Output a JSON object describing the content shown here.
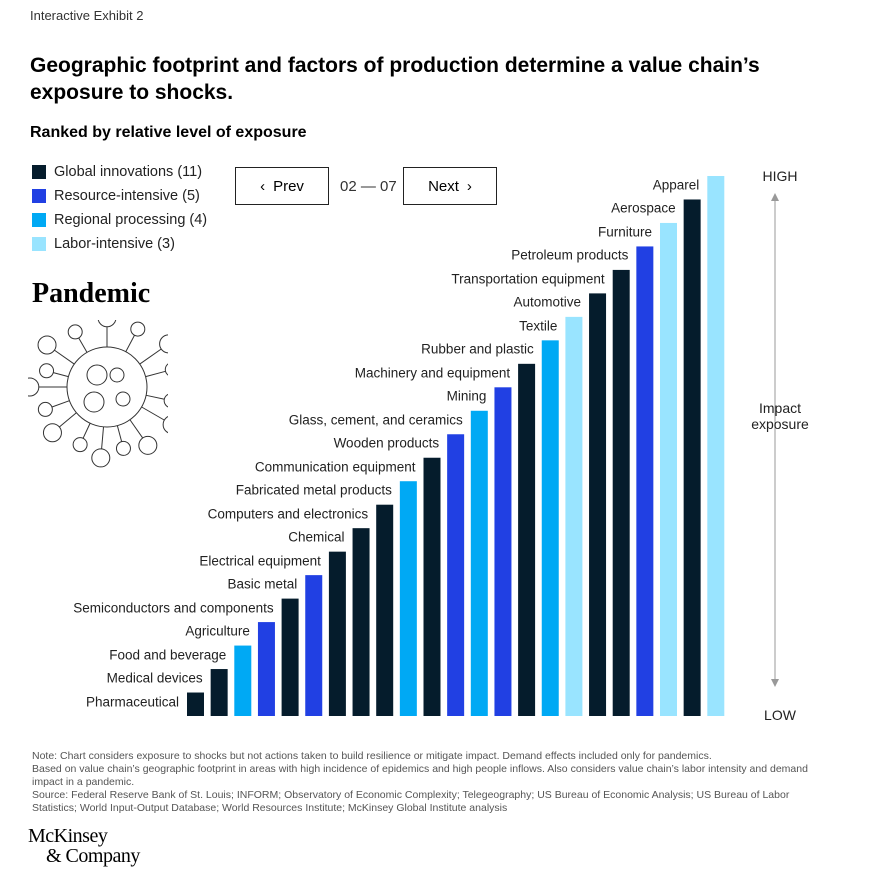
{
  "kicker": "Interactive Exhibit 2",
  "title": "Geographic footprint and factors of production determine a value chain’s exposure to shocks.",
  "subtitle": "Ranked by relative level of exposure",
  "legend": [
    {
      "label": "Global innovations (11)",
      "color": "#051c2c"
    },
    {
      "label": "Resource-intensive (5)",
      "color": "#2140e3"
    },
    {
      "label": "Regional processing (4)",
      "color": "#00a9f4"
    },
    {
      "label": "Labor-intensive (3)",
      "color": "#99e4ff"
    }
  ],
  "nav": {
    "prev": "Prev",
    "next": "Next",
    "page": "02 — 07",
    "prev_icon": "chevron-left",
    "next_icon": "chevron-right"
  },
  "scenario": "Pandemic",
  "scenario_icon": "virus-icon",
  "axis": {
    "high": "HIGH",
    "low": "LOW",
    "label_line1": "Impact",
    "label_line2": "exposure"
  },
  "chart_data": {
    "type": "bar",
    "title": "",
    "xlabel": "",
    "ylabel": "Impact exposure",
    "y_axis_ends": [
      "LOW",
      "HIGH"
    ],
    "categories": [
      "Pharmaceutical",
      "Medical devices",
      "Food and beverage",
      "Agriculture",
      "Semiconductors and components",
      "Basic metal",
      "Electrical equipment",
      "Chemical",
      "Computers and electronics",
      "Fabricated metal products",
      "Communication equipment",
      "Wooden products",
      "Glass, cement, and ceramics",
      "Mining",
      "Machinery and equipment",
      "Rubber and plastic",
      "Textile",
      "Automotive",
      "Transportation equipment",
      "Petroleum products",
      "Furniture",
      "Aerospace",
      "Apparel"
    ],
    "values": [
      1,
      2,
      3,
      4,
      5,
      6,
      7,
      8,
      9,
      10,
      11,
      12,
      13,
      14,
      15,
      16,
      17,
      18,
      19,
      20,
      21,
      22,
      23
    ],
    "groups": [
      "Global innovations",
      "Global innovations",
      "Regional processing",
      "Resource-intensive",
      "Global innovations",
      "Resource-intensive",
      "Global innovations",
      "Global innovations",
      "Global innovations",
      "Regional processing",
      "Global innovations",
      "Resource-intensive",
      "Regional processing",
      "Resource-intensive",
      "Global innovations",
      "Regional processing",
      "Labor-intensive",
      "Global innovations",
      "Global innovations",
      "Resource-intensive",
      "Labor-intensive",
      "Global innovations",
      "Labor-intensive"
    ],
    "grid": false,
    "legend_position": "top-left"
  },
  "note": "Note: Chart considers exposure to shocks but not actions taken to build resilience or mitigate impact. Demand effects included only for pandemics.",
  "note2": "Based on value chain’s geographic footprint in areas with high incidence of epidemics and high people inflows. Also considers value chain’s labor intensity and demand impact in a pandemic.",
  "source": "Source: Federal Reserve Bank of St. Louis; INFORM; Observatory of Economic Complexity; Telegeography; US Bureau of Economic Analysis; US Bureau of Labor Statistics; World Input-Output Database; World Resources Institute; McKinsey Global Institute analysis",
  "logo": {
    "line1": "McKinsey",
    "line2": "& Company"
  }
}
